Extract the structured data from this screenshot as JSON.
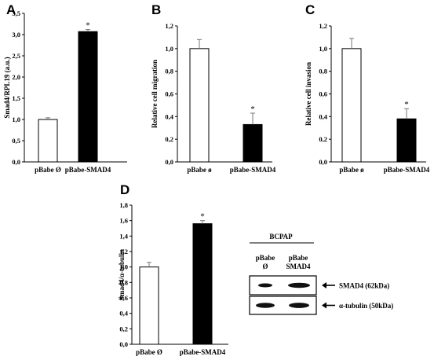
{
  "chart_data": [
    {
      "panel": "A",
      "type": "bar",
      "categories": [
        "pBabe Ø",
        "pBabe-SMAD4"
      ],
      "values": [
        1.0,
        3.07
      ],
      "errors": [
        0.04,
        0.05
      ],
      "significance": [
        "",
        "*"
      ],
      "ylabel": "Smad4/RPL19 (a.u.)",
      "ylim": [
        0,
        3.5
      ],
      "yticks": [
        "0,0",
        "0,5",
        "1,0",
        "1,5",
        "2,0",
        "2,5",
        "3,0",
        "3,5"
      ],
      "bar_fill": [
        "#ffffff",
        "#000000"
      ]
    },
    {
      "panel": "B",
      "type": "bar",
      "categories": [
        "pBabe ø",
        "pBabe-SMAD4"
      ],
      "values": [
        1.0,
        0.33
      ],
      "errors": [
        0.08,
        0.1
      ],
      "significance": [
        "",
        "*"
      ],
      "ylabel": "Relative cell migration",
      "ylim": [
        0,
        1.2
      ],
      "yticks": [
        "0,0",
        "0,2",
        "0,4",
        "0,6",
        "0,8",
        "1,0",
        "1,2"
      ],
      "bar_fill": [
        "#ffffff",
        "#000000"
      ]
    },
    {
      "panel": "C",
      "type": "bar",
      "categories": [
        "pBabe ø",
        "pBabe-SMAD4"
      ],
      "values": [
        1.0,
        0.38
      ],
      "errors": [
        0.09,
        0.09
      ],
      "significance": [
        "",
        "*"
      ],
      "ylabel": "Relative cell invasion",
      "ylim": [
        0,
        1.2
      ],
      "yticks": [
        "0,0",
        "0,2",
        "0,4",
        "0,6",
        "0,8",
        "1,0",
        "1,2"
      ],
      "bar_fill": [
        "#ffffff",
        "#000000"
      ]
    },
    {
      "panel": "D",
      "type": "bar",
      "categories": [
        "pBabe Ø",
        "pBabe-SMAD4"
      ],
      "values": [
        1.0,
        1.56
      ],
      "errors": [
        0.06,
        0.04
      ],
      "significance": [
        "",
        "*"
      ],
      "ylabel": "Smad4/α-tubulin",
      "ylim": [
        0,
        1.8
      ],
      "yticks": [
        "0,0",
        "0,2",
        "0,4",
        "0,6",
        "0,8",
        "1,0",
        "1,2",
        "1,4",
        "1,6",
        "1,8"
      ],
      "bar_fill": [
        "#ffffff",
        "#000000"
      ]
    }
  ],
  "western_blot": {
    "cell_line": "BCPAP",
    "lanes": [
      [
        "pBabe",
        "Ø"
      ],
      [
        "pBabe",
        "SMAD4"
      ]
    ],
    "bands": [
      {
        "label": "SMAD4  (62kDa)"
      },
      {
        "label": "α-tubulin  (50kDa)"
      }
    ]
  }
}
